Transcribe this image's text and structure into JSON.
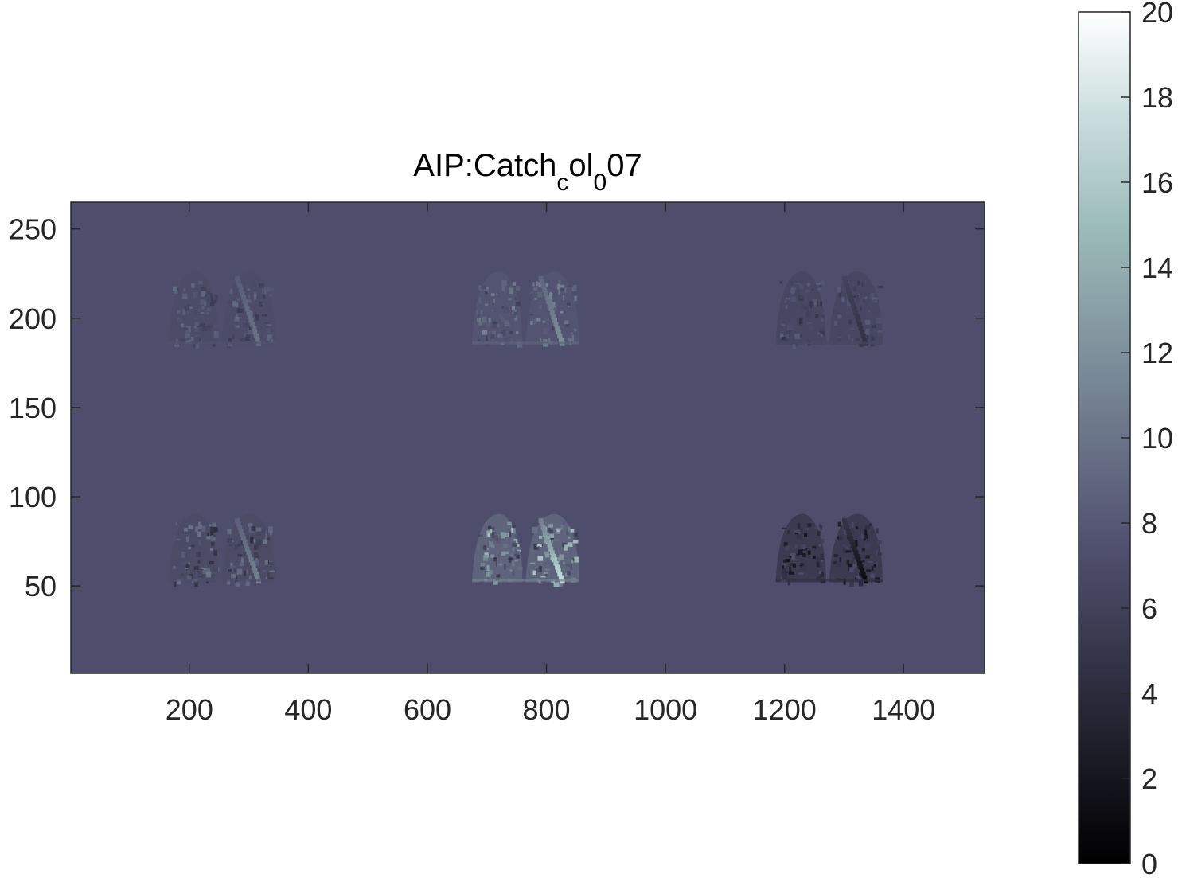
{
  "chart_data": {
    "type": "heatmap",
    "title": {
      "parts": [
        {
          "text": "AIP:Catch",
          "sub": false
        },
        {
          "text": "c",
          "sub": true
        },
        {
          "text": "ol",
          "sub": false
        },
        {
          "text": "0",
          "sub": true
        },
        {
          "text": "07",
          "sub": false
        }
      ]
    },
    "xlabel": "",
    "ylabel": "",
    "xlim": [
      1,
      1536
    ],
    "ylim": [
      1,
      265
    ],
    "x_ticks": [
      200,
      400,
      600,
      800,
      1000,
      1200,
      1400
    ],
    "x_tick_labels": [
      "200",
      "400",
      "600",
      "800",
      "1000",
      "1200",
      "1400"
    ],
    "y_ticks": [
      50,
      100,
      150,
      200,
      250
    ],
    "y_tick_labels": [
      "50",
      "100",
      "150",
      "200",
      "250"
    ],
    "background_value": 7.2,
    "colormap": "bone",
    "grid": false,
    "colorbar": {
      "range": [
        0,
        20
      ],
      "ticks": [
        0,
        2,
        4,
        6,
        8,
        10,
        12,
        14,
        16,
        18,
        20
      ],
      "tick_labels": [
        "0",
        "2",
        "4",
        "6",
        "8",
        "10",
        "12",
        "14",
        "16",
        "18",
        "20"
      ],
      "placement": "right"
    },
    "regions": [
      {
        "name": "top-left",
        "x_range": [
          165,
          345
        ],
        "y_range": [
          185,
          228
        ],
        "min_value": 5.0,
        "max_value": 10.0
      },
      {
        "name": "top-center",
        "x_range": [
          675,
          855
        ],
        "y_range": [
          185,
          228
        ],
        "min_value": 5.5,
        "max_value": 12.0
      },
      {
        "name": "top-right",
        "x_range": [
          1185,
          1365
        ],
        "y_range": [
          185,
          228
        ],
        "min_value": 4.5,
        "max_value": 9.0
      },
      {
        "name": "bottom-left",
        "x_range": [
          165,
          345
        ],
        "y_range": [
          52,
          92
        ],
        "min_value": 3.5,
        "max_value": 11.0
      },
      {
        "name": "bottom-center",
        "x_range": [
          675,
          855
        ],
        "y_range": [
          52,
          92
        ],
        "min_value": 4.0,
        "max_value": 17.5
      },
      {
        "name": "bottom-right",
        "x_range": [
          1185,
          1365
        ],
        "y_range": [
          52,
          92
        ],
        "min_value": 1.0,
        "max_value": 8.0
      }
    ]
  }
}
